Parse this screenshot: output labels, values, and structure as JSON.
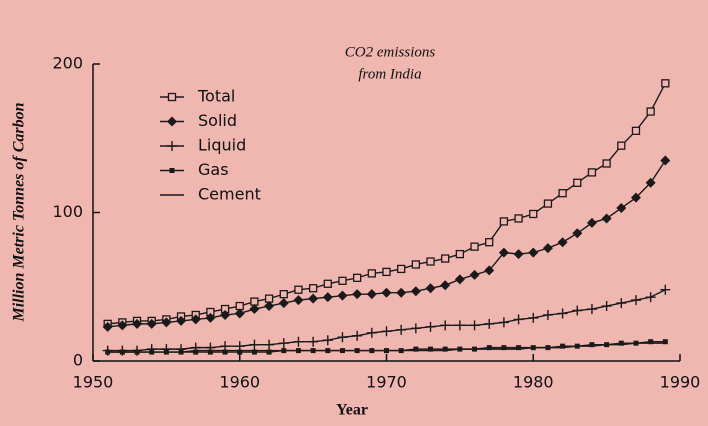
{
  "chart_data": {
    "type": "line",
    "title": "CO2 emissions",
    "subtitle": "from India",
    "x_label": "Year",
    "y_label": "Million Metric Tonnes of Carbon",
    "x": [
      1951,
      1952,
      1953,
      1954,
      1955,
      1956,
      1957,
      1958,
      1959,
      1960,
      1961,
      1962,
      1963,
      1964,
      1965,
      1966,
      1967,
      1968,
      1969,
      1970,
      1971,
      1972,
      1973,
      1974,
      1975,
      1976,
      1977,
      1978,
      1979,
      1980,
      1981,
      1982,
      1983,
      1984,
      1985,
      1986,
      1987,
      1988,
      1989
    ],
    "xlim": [
      1950,
      1990
    ],
    "xticks": [
      1950,
      1960,
      1970,
      1980,
      1990
    ],
    "ylim": [
      0,
      200
    ],
    "yticks": [
      0,
      100,
      200
    ],
    "legend": "top-left",
    "series": [
      {
        "name": "Total",
        "color": "#1a1a1a",
        "marker": "open-square",
        "values": [
          25,
          26,
          27,
          27,
          28,
          30,
          31,
          33,
          35,
          37,
          40,
          42,
          45,
          48,
          49,
          52,
          54,
          56,
          59,
          60,
          62,
          65,
          67,
          69,
          72,
          77,
          80,
          94,
          96,
          99,
          106,
          113,
          120,
          127,
          133,
          145,
          155,
          168,
          187
        ]
      },
      {
        "name": "Solid",
        "color": "#1a1a1a",
        "marker": "diamond",
        "values": [
          23,
          24,
          25,
          25,
          26,
          27,
          28,
          29,
          31,
          32,
          35,
          37,
          39,
          41,
          42,
          43,
          44,
          45,
          45,
          46,
          46,
          47,
          49,
          51,
          55,
          58,
          61,
          73,
          72,
          73,
          76,
          80,
          86,
          93,
          96,
          103,
          110,
          120,
          135
        ]
      },
      {
        "name": "Liquid",
        "color": "#1a1a1a",
        "marker": "plus",
        "values": [
          7,
          7,
          7,
          8,
          8,
          8,
          9,
          9,
          10,
          10,
          11,
          11,
          12,
          13,
          13,
          14,
          16,
          17,
          19,
          20,
          21,
          22,
          23,
          24,
          24,
          24,
          25,
          26,
          28,
          29,
          31,
          32,
          34,
          35,
          37,
          39,
          41,
          43,
          48
        ]
      },
      {
        "name": "Gas",
        "color": "#1a1a1a",
        "marker": "small-square",
        "values": [
          6,
          6,
          6,
          6,
          6,
          6,
          6,
          6,
          6,
          6,
          6,
          6,
          7,
          7,
          7,
          7,
          7,
          7,
          7,
          7,
          7,
          8,
          8,
          8,
          8,
          8,
          9,
          9,
          9,
          9,
          9,
          10,
          10,
          11,
          11,
          12,
          12,
          13,
          13
        ]
      },
      {
        "name": "Cement",
        "color": "#1a1a1a",
        "marker": "none",
        "values": [
          6,
          6,
          6,
          6,
          6,
          6,
          7,
          7,
          7,
          7,
          7,
          7,
          7,
          7,
          7,
          7,
          7,
          7,
          7,
          7,
          7,
          7,
          7,
          7,
          8,
          8,
          8,
          8,
          8,
          9,
          9,
          9,
          10,
          10,
          11,
          11,
          12,
          12,
          12
        ]
      }
    ]
  }
}
